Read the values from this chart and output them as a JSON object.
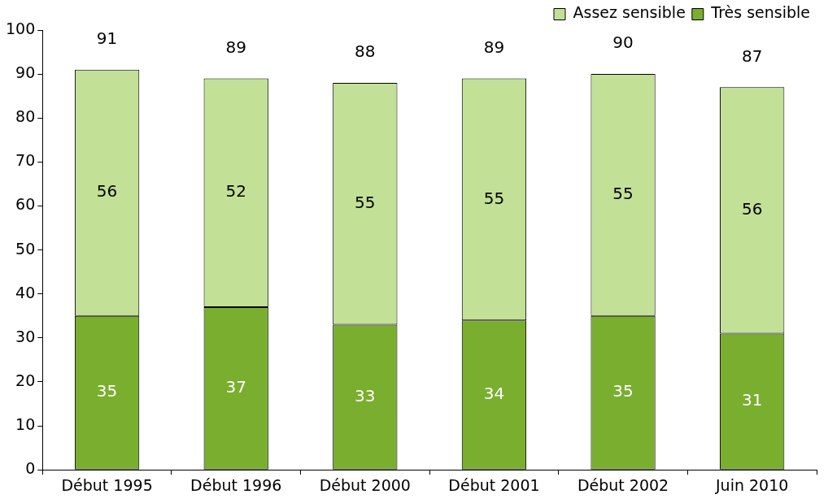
{
  "chart_data": {
    "type": "bar",
    "stacked": true,
    "categories": [
      "Début 1995",
      "Début 1996",
      "Début 2000",
      "Début 2001",
      "Début 2002",
      "Juin 2010"
    ],
    "series": [
      {
        "name": "Très sensible",
        "color": "#7aae2e",
        "values": [
          35,
          37,
          33,
          34,
          35,
          31
        ]
      },
      {
        "name": "Assez sensible",
        "color": "#c3e196",
        "values": [
          56,
          52,
          55,
          55,
          55,
          56
        ]
      }
    ],
    "ylim": [
      0,
      100
    ],
    "yticks": [
      0,
      10,
      20,
      30,
      40,
      50,
      60,
      70,
      80,
      90,
      100
    ],
    "grid": false,
    "legend": "top right",
    "data_labels": true,
    "totals": [
      "91",
      "89",
      "88",
      "89",
      "90",
      "87"
    ]
  }
}
